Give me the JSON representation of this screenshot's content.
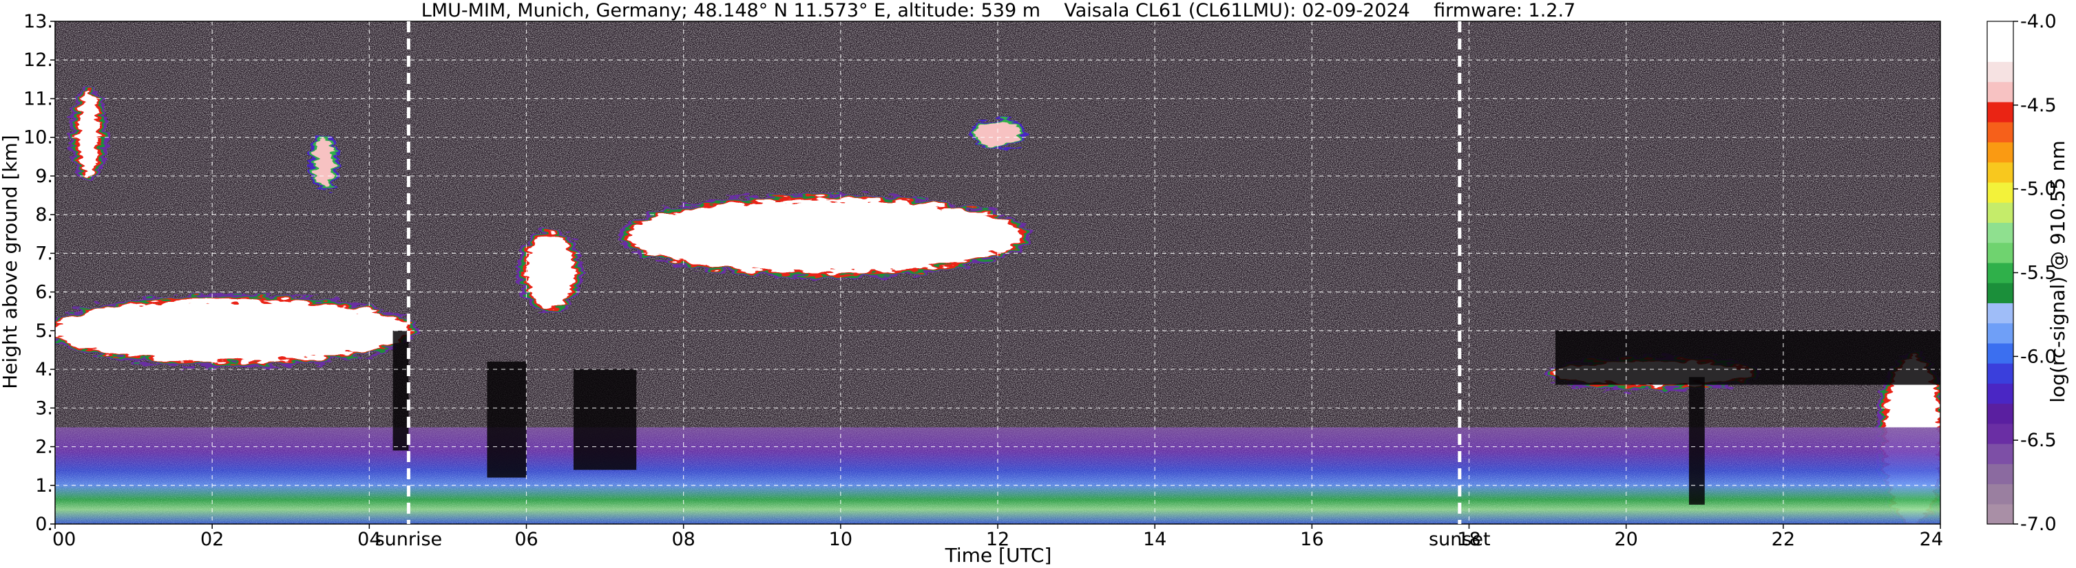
{
  "chart_data": {
    "type": "heatmap",
    "title": "LMU-MIM, Munich, Germany; 48.148° N 11.573° E, altitude: 539 m    Vaisala CL61 (CL61LMU): 02-09-2024    firmware: 1.2.7",
    "xlabel": "Time [UTC]",
    "ylabel": "Height above ground [km]",
    "xlim": [
      0,
      24
    ],
    "ylim": [
      0,
      13
    ],
    "x_ticks": [
      "00",
      "02",
      "04",
      "06",
      "08",
      "10",
      "12",
      "14",
      "16",
      "18",
      "20",
      "22",
      "24"
    ],
    "y_ticks": [
      "0.",
      "1.",
      "2.",
      "3.",
      "4.",
      "5.",
      "6.",
      "7.",
      "8.",
      "9.",
      "10.",
      "11.",
      "12.",
      "13."
    ],
    "grid": true,
    "colorbar": {
      "label": "log(rc-signal) @ 910.55 nm",
      "min": -7.0,
      "max": -4.0,
      "ticks": [
        "-4.0",
        "-4.5",
        "-5.0",
        "-5.5",
        "-6.0",
        "-6.5",
        "-7.0"
      ],
      "colors": [
        "#a98fa6",
        "#9a7fa0",
        "#8b6aa0",
        "#7d4fa6",
        "#6a2ea4",
        "#5a1fa0",
        "#4a26c4",
        "#3a3fdc",
        "#3b6ff0",
        "#6f9ff7",
        "#9fbdf8",
        "#1b8f3a",
        "#2fb04a",
        "#6fd36f",
        "#8fe08f",
        "#c5ec6a",
        "#f3f23a",
        "#f8c81e",
        "#fa9a12",
        "#f6601a",
        "#ea2414",
        "#f7c2c2",
        "#f6e2e2",
        "#ffffff",
        "#ffffff"
      ]
    },
    "annotations": [
      {
        "label": "sunrise",
        "x": 4.5
      },
      {
        "label": "sunset",
        "x": 17.88
      }
    ],
    "features": [
      {
        "kind": "cloud",
        "from_h": 0.0,
        "to_h": 4.5,
        "bottom_km": 4.2,
        "top_km": 5.8,
        "intensity": "high"
      },
      {
        "kind": "cloud",
        "from_h": 0.3,
        "to_h": 0.55,
        "bottom_km": 9.0,
        "top_km": 11.2,
        "intensity": "high"
      },
      {
        "kind": "cloud",
        "from_h": 3.3,
        "to_h": 3.55,
        "bottom_km": 8.7,
        "top_km": 10.0,
        "intensity": "medium"
      },
      {
        "kind": "cloud",
        "from_h": 6.0,
        "to_h": 6.6,
        "bottom_km": 5.6,
        "top_km": 7.5,
        "intensity": "high"
      },
      {
        "kind": "cloud",
        "from_h": 7.3,
        "to_h": 12.3,
        "bottom_km": 6.5,
        "top_km": 8.4,
        "intensity": "high"
      },
      {
        "kind": "cloud",
        "from_h": 11.7,
        "to_h": 12.3,
        "bottom_km": 9.8,
        "top_km": 10.4,
        "intensity": "medium"
      },
      {
        "kind": "cloud",
        "from_h": 19.1,
        "to_h": 21.6,
        "bottom_km": 3.6,
        "top_km": 4.2,
        "intensity": "high"
      },
      {
        "kind": "cloud",
        "from_h": 23.3,
        "to_h": 24.0,
        "bottom_km": 0.0,
        "top_km": 4.3,
        "intensity": "high"
      },
      {
        "kind": "boundary_layer",
        "from_h": 0.0,
        "to_h": 24.0,
        "bottom_km": 0.0,
        "top_km": 2.5,
        "intensity": "medium"
      },
      {
        "kind": "no_signal",
        "from_h": 4.3,
        "to_h": 4.5,
        "bottom_km": 1.9,
        "top_km": 5.0
      },
      {
        "kind": "no_signal",
        "from_h": 5.5,
        "to_h": 6.0,
        "bottom_km": 1.2,
        "top_km": 4.2
      },
      {
        "kind": "no_signal",
        "from_h": 6.6,
        "to_h": 7.4,
        "bottom_km": 1.4,
        "top_km": 4.0
      },
      {
        "kind": "no_signal",
        "from_h": 19.1,
        "to_h": 24.0,
        "bottom_km": 3.6,
        "top_km": 5.0
      },
      {
        "kind": "no_signal",
        "from_h": 20.8,
        "to_h": 21.0,
        "bottom_km": 0.5,
        "top_km": 3.8
      }
    ]
  }
}
